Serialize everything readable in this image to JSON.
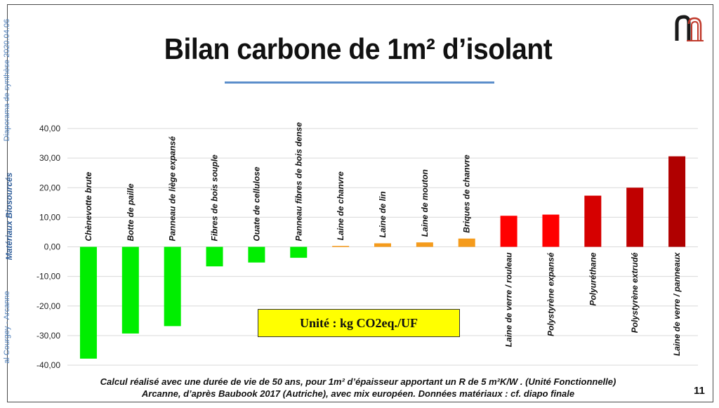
{
  "slide": {
    "title": "Bilan carbone de 1m² d’isolant",
    "side_label_top": "Diaporama de synthèse 2020.04.06",
    "side_label_mid": "Matériaux Biosourcés",
    "side_label_bottom": "al Courgey - Arcanne",
    "footer_line1": "Calcul réalisé avec une durée de vie de 50 ans, pour 1m² d’épaisseur apportant un R de 5 m²K/W . (Unité Fonctionnelle)",
    "footer_line2": "Arcanne, d’après Baubook 2017 (Autriche), avec mix européen. Données matériaux : cf. diapo finale",
    "page_number": "11",
    "unit_note": "Unité : kg CO2eq./UF",
    "logo_icon": "arcanne-logo-icon"
  },
  "chart_data": {
    "type": "bar",
    "title": "",
    "xlabel": "",
    "ylabel": "",
    "ylim": [
      -40,
      40
    ],
    "yticks": [
      -40,
      -30,
      -20,
      -10,
      0,
      10,
      20,
      30,
      40
    ],
    "ytick_labels": [
      "-40,00",
      "-30,00",
      "-20,00",
      "-10,00",
      "0,00",
      "10,00",
      "20,00",
      "30,00",
      "40,00"
    ],
    "grid": true,
    "categories": [
      "Chènevotte brute",
      "Botte de paille",
      "Panneau de liège expansé",
      "Fibres de bois souple",
      "Ouate de cellulose",
      "Panneau fibres de bois dense",
      "Laine de chanvre",
      "Laine de lin",
      "Laine de mouton",
      "Briques de chanvre",
      "Laine de verre / rouleau",
      "Polystyrène expansé",
      "Polyuréthane",
      "Polystyrène extrudé",
      "Laine de verre / panneaux"
    ],
    "values": [
      -37.8,
      -29.3,
      -26.8,
      -6.6,
      -5.3,
      -3.7,
      0.3,
      1.2,
      1.5,
      2.8,
      10.5,
      10.9,
      17.3,
      20.0,
      30.6
    ],
    "colors": [
      "#00ee00",
      "#00ee00",
      "#00ee00",
      "#00ee00",
      "#00ee00",
      "#00ee00",
      "#f59b1c",
      "#f59b1c",
      "#f59b1c",
      "#f59b1c",
      "#ff0000",
      "#ff0000",
      "#d60000",
      "#c00000",
      "#b00000"
    ]
  }
}
